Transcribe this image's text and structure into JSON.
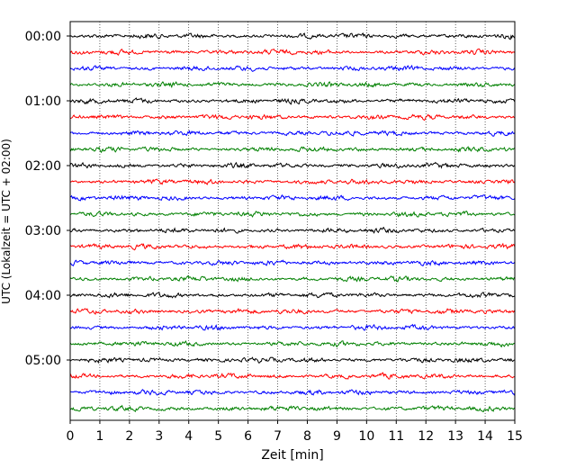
{
  "chart_data": {
    "type": "line",
    "title": "",
    "xlabel": "Zeit  [min]",
    "ylabel": "UTC (Lokalzeit = UTC + 02:00)",
    "xlim": [
      0,
      15
    ],
    "x_ticks": [
      "0",
      "1",
      "2",
      "3",
      "4",
      "5",
      "6",
      "7",
      "8",
      "9",
      "10",
      "11",
      "12",
      "13",
      "14",
      "15"
    ],
    "y_tick_labels": [
      "00:00",
      "01:00",
      "02:00",
      "03:00",
      "04:00",
      "05:00"
    ],
    "trace_interval_minutes": 15,
    "trace_count": 24,
    "trace_colors": [
      "#000000",
      "#ff0000",
      "#0000ff",
      "#008000"
    ],
    "x_grid": "dotted",
    "legend": "none",
    "series": []
  }
}
